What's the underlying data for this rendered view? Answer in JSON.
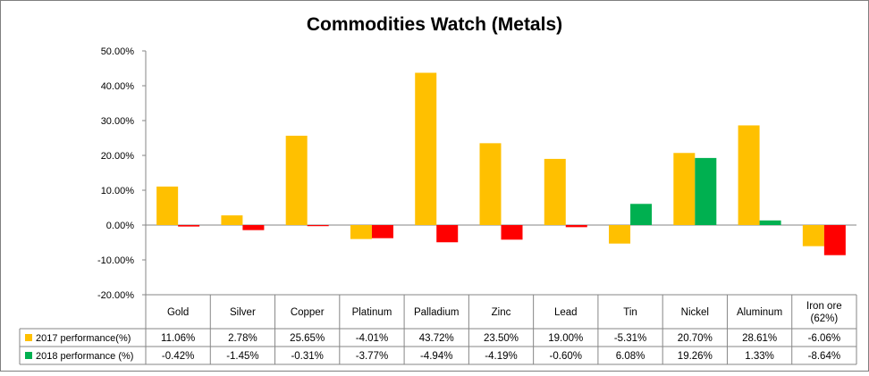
{
  "chart_data": {
    "type": "bar",
    "title": "Commodities Watch (Metals)",
    "categories": [
      "Gold",
      "Silver",
      "Copper",
      "Platinum",
      "Palladium",
      "Zinc",
      "Lead",
      "Tin",
      "Nickel",
      "Aluminum",
      "Iron ore (62%)"
    ],
    "category_lines": [
      [
        "Gold"
      ],
      [
        "Silver"
      ],
      [
        "Copper"
      ],
      [
        "Platinum"
      ],
      [
        "Palladium"
      ],
      [
        "Zinc"
      ],
      [
        "Lead"
      ],
      [
        "Tin"
      ],
      [
        "Nickel"
      ],
      [
        "Aluminum"
      ],
      [
        "Iron ore",
        "(62%)"
      ]
    ],
    "series": [
      {
        "name": "2017 performance(%)",
        "color": "#FFC000",
        "values": [
          11.06,
          2.78,
          25.65,
          -4.01,
          43.72,
          23.5,
          19.0,
          -5.31,
          20.7,
          28.61,
          -6.06
        ],
        "labels": [
          "11.06%",
          "2.78%",
          "25.65%",
          "-4.01%",
          "43.72%",
          "23.50%",
          "19.00%",
          "-5.31%",
          "20.70%",
          "28.61%",
          "-6.06%"
        ]
      },
      {
        "name": "2018 performance (%)",
        "color": "#FF0000",
        "positive_color": "#00B050",
        "values": [
          -0.42,
          -1.45,
          -0.31,
          -3.77,
          -4.94,
          -4.19,
          -0.6,
          6.08,
          19.26,
          1.33,
          -8.64
        ],
        "labels": [
          "-0.42%",
          "-1.45%",
          "-0.31%",
          "-3.77%",
          "-4.94%",
          "-4.19%",
          "-0.60%",
          "6.08%",
          "19.26%",
          "1.33%",
          "-8.64%"
        ]
      }
    ],
    "ylim": [
      -20,
      50
    ],
    "yticks": [
      "50.00%",
      "40.00%",
      "30.00%",
      "20.00%",
      "10.00%",
      "0.00%",
      "-10.00%",
      "-20.00%"
    ],
    "ytick_values": [
      50,
      40,
      30,
      20,
      10,
      0,
      -10,
      -20
    ],
    "grid": false,
    "legend": "data table below chart"
  }
}
